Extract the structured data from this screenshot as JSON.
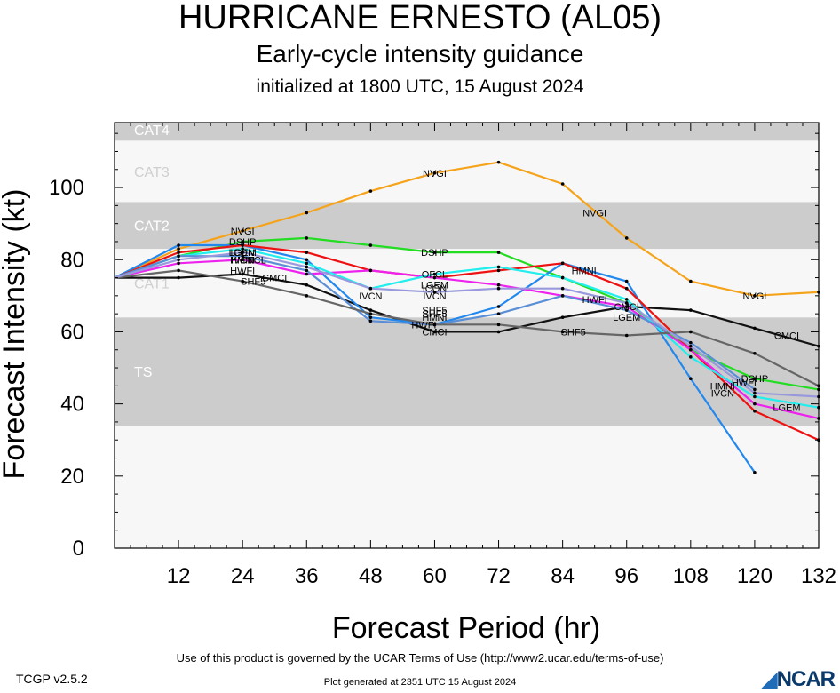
{
  "header": {
    "title": "HURRICANE ERNESTO (AL05)",
    "subtitle": "Early-cycle intensity guidance",
    "init_line": "initialized at 1800 UTC, 15 August 2024"
  },
  "footer": {
    "terms": "Use of this product is governed by the UCAR Terms of Use (http://www2.ucar.edu/terms-of-use)",
    "version": "TCGP v2.5.2",
    "generated": "Plot generated at 2351 UTC   15 August 2024",
    "logo": "NCAR"
  },
  "chart_data": {
    "type": "line",
    "xlabel": "Forecast Period (hr)",
    "ylabel": "Forecast Intensity (kt)",
    "xlim": [
      0,
      132
    ],
    "ylim": [
      0,
      118
    ],
    "xticks": [
      12,
      24,
      36,
      48,
      60,
      72,
      84,
      96,
      108,
      120,
      132
    ],
    "yticks": [
      0,
      20,
      40,
      60,
      80,
      100
    ],
    "bands": [
      {
        "label": "TS",
        "from": 34,
        "to": 64,
        "fill": "#cccccc"
      },
      {
        "label": "CAT1",
        "from": 64,
        "to": 83,
        "fill": "#f7f7f7"
      },
      {
        "label": "CAT2",
        "from": 83,
        "to": 96,
        "fill": "#cccccc"
      },
      {
        "label": "CAT3",
        "from": 96,
        "to": 113,
        "fill": "#f7f7f7"
      },
      {
        "label": "CAT4",
        "from": 113,
        "to": 137,
        "fill": "#cccccc"
      }
    ],
    "series": [
      {
        "name": "NVGI",
        "color": "#f5a31a",
        "x": [
          0,
          12,
          24,
          36,
          48,
          60,
          72,
          84,
          96,
          108,
          120,
          132
        ],
        "y": [
          75,
          83,
          88,
          93,
          99,
          104,
          107,
          101,
          86,
          74,
          70,
          71
        ],
        "labels": [
          [
            24,
            88
          ],
          [
            60,
            104
          ],
          [
            90,
            93
          ],
          [
            120,
            70
          ]
        ]
      },
      {
        "name": "DSHP",
        "color": "#22dd22",
        "x": [
          0,
          12,
          24,
          36,
          48,
          60,
          72,
          84,
          96,
          108,
          120,
          132
        ],
        "y": [
          75,
          81,
          85,
          86,
          84,
          82,
          82,
          75,
          68,
          55,
          47,
          44
        ],
        "labels": [
          [
            24,
            85
          ],
          [
            60,
            82
          ],
          [
            120,
            47
          ]
        ]
      },
      {
        "name": "CMCI",
        "color": "#111111",
        "x": [
          0,
          12,
          24,
          36,
          48,
          60,
          72,
          84,
          96,
          108,
          120,
          132
        ],
        "y": [
          75,
          75,
          76,
          73,
          66,
          60,
          60,
          64,
          67,
          66,
          61,
          56
        ],
        "labels": [
          [
            30,
            75
          ],
          [
            60,
            60
          ],
          [
            96,
            67
          ],
          [
            126,
            59
          ]
        ]
      },
      {
        "name": "HMNI",
        "color": "#2288ee",
        "x": [
          0,
          12,
          24,
          36,
          48,
          60,
          72,
          84,
          96,
          108,
          120
        ],
        "y": [
          75,
          84,
          84,
          80,
          64,
          62,
          67,
          79,
          74,
          47,
          21
        ],
        "labels": [
          [
            24,
            80
          ],
          [
            60,
            64
          ],
          [
            88,
            77
          ],
          [
            114,
            45
          ]
        ]
      },
      {
        "name": "LGEM",
        "color": "#ee1111",
        "x": [
          0,
          12,
          24,
          36,
          48,
          60,
          72,
          84,
          96,
          108,
          120,
          132
        ],
        "y": [
          75,
          82,
          84,
          82,
          77,
          75,
          77,
          79,
          72,
          55,
          38,
          30
        ],
        "labels": [
          [
            24,
            82
          ],
          [
            60,
            73
          ],
          [
            96,
            64
          ],
          [
            126,
            39
          ]
        ]
      },
      {
        "name": "IVCN",
        "color": "#ee22ee",
        "x": [
          0,
          12,
          24,
          36,
          48,
          60,
          72,
          84,
          96,
          108,
          120,
          132
        ],
        "y": [
          75,
          79,
          80,
          76,
          77,
          75,
          73,
          70,
          67,
          55,
          40,
          36
        ],
        "labels": [
          [
            24,
            80
          ],
          [
            48,
            70
          ],
          [
            60,
            70
          ],
          [
            114,
            43
          ]
        ]
      },
      {
        "name": "ICON",
        "color": "#22eeee",
        "x": [
          0,
          12,
          24,
          36,
          48,
          60,
          72,
          84,
          96,
          108,
          120,
          132
        ],
        "y": [
          75,
          81,
          83,
          79,
          72,
          76,
          78,
          75,
          69,
          53,
          42,
          39
        ],
        "labels": [
          [
            24,
            82
          ],
          [
            60,
            72
          ]
        ]
      },
      {
        "name": "HWFI",
        "color": "#5a8fd6",
        "x": [
          0,
          12,
          24,
          36,
          48,
          60,
          72,
          84,
          96,
          108,
          120
        ],
        "y": [
          75,
          81,
          81,
          77,
          63,
          62,
          65,
          70,
          66,
          57,
          44
        ],
        "labels": [
          [
            24,
            77
          ],
          [
            58,
            62
          ],
          [
            90,
            69
          ],
          [
            118,
            46
          ]
        ]
      },
      {
        "name": "SHF5",
        "color": "#666666",
        "x": [
          0,
          12,
          24,
          36,
          48,
          60,
          72,
          84,
          96,
          108,
          120,
          132
        ],
        "y": [
          75,
          77,
          74,
          70,
          65,
          62,
          62,
          60,
          59,
          60,
          54,
          45
        ],
        "labels": [
          [
            26,
            74
          ],
          [
            60,
            66
          ],
          [
            60,
            65
          ],
          [
            86,
            60
          ]
        ]
      },
      {
        "name": "OFCL",
        "color": "#9999dd",
        "x": [
          0,
          12,
          24,
          36,
          48,
          60,
          72,
          84,
          96,
          108,
          120,
          132
        ],
        "y": [
          75,
          80,
          82,
          78,
          72,
          71,
          72,
          72,
          68,
          56,
          43,
          42
        ],
        "labels": [
          [
            26,
            80
          ],
          [
            60,
            76
          ]
        ]
      }
    ]
  }
}
